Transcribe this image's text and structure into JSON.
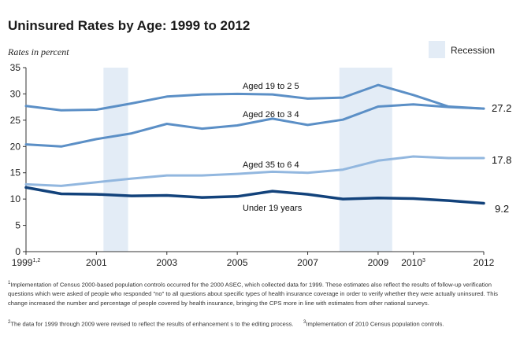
{
  "chart_data": {
    "type": "line",
    "title": "Uninsured Rates by Age: 1999 to 2012",
    "subtitle": "Rates in percent",
    "ylim": [
      0,
      35
    ],
    "yticks": [
      0,
      5,
      10,
      15,
      20,
      25,
      30,
      35
    ],
    "xlim": [
      1999,
      2012
    ],
    "xticks": [
      {
        "x": 1999,
        "label": "1999",
        "sup": "1,2"
      },
      {
        "x": 2001,
        "label": "2001",
        "sup": ""
      },
      {
        "x": 2003,
        "label": "2003",
        "sup": ""
      },
      {
        "x": 2005,
        "label": "2005",
        "sup": ""
      },
      {
        "x": 2007,
        "label": "2007",
        "sup": ""
      },
      {
        "x": 2009,
        "label": "2009",
        "sup": ""
      },
      {
        "x": 2010,
        "label": "2010",
        "sup": "3"
      },
      {
        "x": 2012,
        "label": "2012",
        "sup": ""
      }
    ],
    "recessions": [
      {
        "start": 2001.2,
        "end": 2001.9
      },
      {
        "start": 2007.9,
        "end": 2009.4
      }
    ],
    "legend": {
      "label": "Recession",
      "color": "#e3ecf6"
    },
    "series": [
      {
        "name": "Aged 19 to 25",
        "label": "Aged 19 to 2   5",
        "color": "#5b8fc6",
        "width": 3,
        "x": [
          1999,
          2000,
          2001,
          2002,
          2003,
          2004,
          2005,
          2006,
          2007,
          2008,
          2009,
          2010,
          2011,
          2012
        ],
        "values": [
          27.7,
          26.9,
          27.0,
          28.2,
          29.5,
          29.9,
          30.0,
          29.9,
          29.1,
          29.3,
          31.7,
          29.8,
          27.6,
          27.2
        ]
      },
      {
        "name": "Aged 26 to 34",
        "label": "Aged 26 to 3   4",
        "color": "#5b8fc6",
        "width": 3,
        "x": [
          1999,
          2000,
          2001,
          2002,
          2003,
          2004,
          2005,
          2006,
          2007,
          2008,
          2009,
          2010,
          2011,
          2012
        ],
        "values": [
          20.4,
          20.0,
          21.4,
          22.5,
          24.3,
          23.4,
          24.0,
          25.3,
          24.1,
          25.1,
          27.6,
          28.0,
          27.5,
          27.2
        ]
      },
      {
        "name": "Aged 35 to 64",
        "label": "Aged 35 to 6   4",
        "color": "#92b7df",
        "width": 3,
        "x": [
          1999,
          2000,
          2001,
          2002,
          2003,
          2004,
          2005,
          2006,
          2007,
          2008,
          2009,
          2010,
          2011,
          2012
        ],
        "values": [
          12.8,
          12.5,
          13.2,
          13.9,
          14.5,
          14.5,
          14.8,
          15.2,
          15.0,
          15.6,
          17.3,
          18.1,
          17.8,
          17.8
        ]
      },
      {
        "name": "Under 19 years",
        "label": "Under 19 years",
        "color": "#12427b",
        "width": 3.5,
        "x": [
          1999,
          2000,
          2001,
          2002,
          2003,
          2004,
          2005,
          2006,
          2007,
          2008,
          2009,
          2010,
          2011,
          2012
        ],
        "values": [
          12.2,
          11.0,
          10.9,
          10.6,
          10.7,
          10.3,
          10.5,
          11.5,
          10.9,
          10.0,
          10.2,
          10.1,
          9.7,
          9.2
        ]
      }
    ],
    "end_labels": [
      {
        "text": "27.2",
        "value": 27.2
      },
      {
        "text": "17.8",
        "value": 17.8
      },
      {
        "text": "9.2",
        "value": 9.2
      }
    ]
  },
  "footnotes": {
    "note1_mark": "1",
    "note1": "Implementation of Census 2000-based population controls occurred for the 2000 ASEC, which collected data for 1999. These estimates also reflect the results of follow-up verification questions which were asked of people who responded \"no\" to all questions about specific types of health insurance coverage in order to verify whether they were actually uninsured. This change increased the number and percentage of people covered by health insurance, bringing the CPS more in line with estimates from other national surveys.",
    "note2_mark": "2",
    "note2": "The data for 1999 through 2009 were revised to reflect the results of enhancement s to the editing process.",
    "note3_mark": "3",
    "note3": "Implementation of 2010 Census population controls."
  }
}
